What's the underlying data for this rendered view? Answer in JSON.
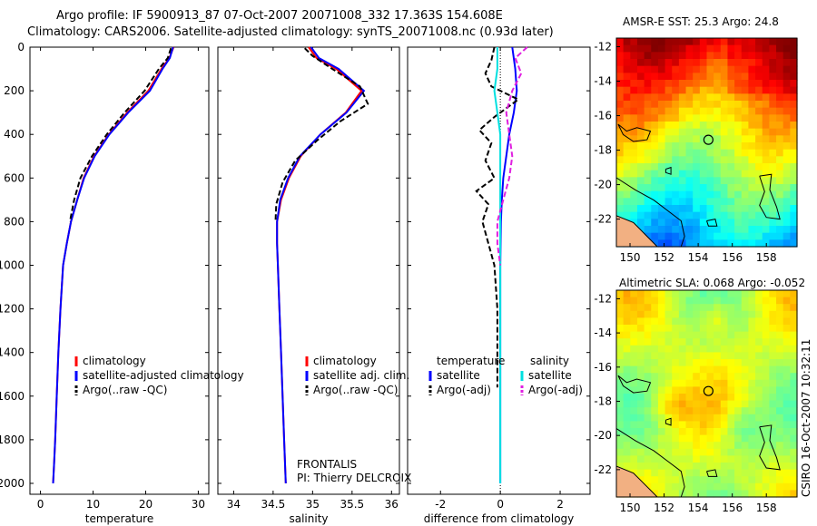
{
  "figure": {
    "title_line1": "Argo profile: IF 5900913_87 07-Oct-2007 20071008_332 17.363S 154.608E",
    "title_line2": "Climatology: CARS2006. Satellite-adjusted climatology: synTS_20071008.nc (0.93d later)",
    "side_stamp": "CSIRO 16-Oct-2007 10:32:11"
  },
  "colors": {
    "climatology": "#ff0000",
    "satellite": "#0000ff",
    "argo": "#000000",
    "salinity_satellite": "#00e0e0",
    "salinity_argo": "#e020e0"
  },
  "chart_data": [
    {
      "type": "line",
      "title": "",
      "xlabel": "temperature",
      "ylabel": "",
      "xlim": [
        -2,
        32
      ],
      "ylim": [
        2050,
        0
      ],
      "xticks": [
        "0",
        "10",
        "20",
        "30"
      ],
      "yticks": [
        "0",
        "200",
        "400",
        "600",
        "800",
        "1000",
        "1200",
        "1400",
        "1600",
        "1800",
        "2000"
      ],
      "legend": [
        "climatology",
        "satellite-adjusted climatology",
        "Argo(..raw -QC)"
      ],
      "series": [
        {
          "name": "climatology",
          "x": [
            25.3,
            24.5,
            23.0,
            20.5,
            16.5,
            13.0,
            10.2,
            8.2,
            7.0,
            5.8,
            5.0,
            4.3,
            3.8,
            3.4,
            3.1,
            2.8,
            2.6,
            2.4
          ],
          "y": [
            0,
            50,
            100,
            200,
            300,
            400,
            500,
            600,
            700,
            800,
            900,
            1000,
            1200,
            1400,
            1600,
            1800,
            1900,
            2000
          ]
        },
        {
          "name": "satellite-adjusted climatology",
          "x": [
            25.2,
            24.6,
            23.2,
            20.8,
            16.7,
            13.1,
            10.3,
            8.3,
            7.0,
            5.8,
            5.0,
            4.3,
            3.8,
            3.4,
            3.1,
            2.8,
            2.6,
            2.4
          ],
          "y": [
            0,
            50,
            100,
            200,
            300,
            400,
            500,
            600,
            700,
            800,
            900,
            1000,
            1200,
            1400,
            1600,
            1800,
            1900,
            2000
          ]
        },
        {
          "name": "Argo(..raw -QC)",
          "x": [
            24.8,
            24.2,
            22.5,
            19.8,
            16.0,
            12.6,
            9.8,
            7.6,
            6.4,
            5.6
          ],
          "y": [
            5,
            50,
            100,
            200,
            300,
            400,
            500,
            600,
            700,
            800
          ]
        }
      ]
    },
    {
      "type": "line",
      "title": "",
      "xlabel": "salinity",
      "ylabel": "",
      "xlim": [
        33.8,
        36.1
      ],
      "ylim": [
        2050,
        0
      ],
      "xticks": [
        "34",
        "34.5",
        "35",
        "35.5",
        "36"
      ],
      "legend": [
        "climatology",
        "satellite adj. clim.",
        "Argo(..raw -QC)"
      ],
      "annotation": [
        "FRONTALIS",
        "PI: Thierry DELCROIX"
      ],
      "series": [
        {
          "name": "climatology",
          "x": [
            34.95,
            35.05,
            35.3,
            35.62,
            35.42,
            35.1,
            34.85,
            34.7,
            34.6,
            34.55,
            34.55,
            34.56,
            34.58,
            34.6,
            34.62,
            34.64,
            34.65,
            34.66
          ],
          "y": [
            0,
            50,
            100,
            200,
            300,
            400,
            500,
            600,
            700,
            800,
            900,
            1000,
            1200,
            1400,
            1600,
            1800,
            1900,
            2000
          ]
        },
        {
          "name": "satellite adj. clim.",
          "x": [
            34.98,
            35.08,
            35.33,
            35.65,
            35.43,
            35.1,
            34.84,
            34.69,
            34.59,
            34.55,
            34.55,
            34.56,
            34.58,
            34.6,
            34.62,
            34.64,
            34.65,
            34.66
          ],
          "y": [
            0,
            50,
            100,
            200,
            300,
            400,
            500,
            600,
            700,
            800,
            900,
            1000,
            1200,
            1400,
            1600,
            1800,
            1900,
            2000
          ]
        },
        {
          "name": "Argo(..raw -QC)",
          "x": [
            34.9,
            35.0,
            35.25,
            35.6,
            35.7,
            35.35,
            35.05,
            34.78,
            34.62,
            34.54,
            34.53
          ],
          "y": [
            5,
            40,
            100,
            180,
            260,
            340,
            430,
            520,
            620,
            720,
            800
          ]
        }
      ]
    },
    {
      "type": "line",
      "title": "",
      "xlabel": "difference from climatology",
      "ylabel": "",
      "xlim": [
        -3.1,
        3.0
      ],
      "ylim": [
        2050,
        0
      ],
      "xticks": [
        "-2",
        "0",
        "2"
      ],
      "legend_left": [
        "temperature",
        "satellite",
        "Argo(-adj)"
      ],
      "legend_right": [
        "salinity",
        "satellite",
        "Argo(-adj)"
      ],
      "series": [
        {
          "name": "temperature satellite",
          "x": [
            0.4,
            0.5,
            0.55,
            0.45,
            0.3,
            0.2,
            0.1,
            0.05,
            0.02,
            0.0,
            0.0,
            0.0,
            0.0
          ],
          "y": [
            0,
            100,
            200,
            300,
            400,
            500,
            600,
            700,
            800,
            1000,
            1400,
            1800,
            2000
          ]
        },
        {
          "name": "temperature Argo(-adj)",
          "x": [
            -0.2,
            -0.3,
            -0.5,
            -0.3,
            0.6,
            -0.2,
            -0.7,
            -0.3,
            -0.5,
            -0.2,
            -0.8,
            -0.4,
            -0.6,
            -0.2,
            -0.1,
            -0.1,
            -0.1,
            -0.1
          ],
          "y": [
            0,
            60,
            120,
            180,
            240,
            320,
            380,
            440,
            520,
            600,
            660,
            720,
            800,
            1000,
            1200,
            1400,
            1500,
            1560
          ]
        },
        {
          "name": "salinity satellite",
          "x": [
            -0.1,
            -0.1,
            -0.2,
            -0.1,
            0.0,
            0.0,
            0.0,
            0.0,
            0.0,
            0.0,
            0.0
          ],
          "y": [
            0,
            100,
            200,
            300,
            400,
            600,
            800,
            1000,
            1400,
            1800,
            2000
          ]
        },
        {
          "name": "salinity Argo(-adj)",
          "x": [
            0.9,
            0.5,
            0.7,
            0.4,
            0.2,
            0.3,
            0.4,
            0.3,
            0.1,
            -0.1,
            -0.1,
            0.0
          ],
          "y": [
            0,
            50,
            120,
            200,
            300,
            400,
            500,
            600,
            700,
            800,
            900,
            1000
          ]
        }
      ]
    },
    {
      "type": "heatmap",
      "title": "AMSR-E SST: 25.3 Argo: 24.8",
      "xticks": [
        "150",
        "152",
        "154",
        "156",
        "158"
      ],
      "yticks": [
        "-12",
        "-14",
        "-16",
        "-18",
        "-20",
        "-22"
      ],
      "xlim": [
        149.2,
        159.8
      ],
      "ylim": [
        -23.6,
        -11.5
      ],
      "marker": {
        "lon": 154.6,
        "lat": -17.4
      }
    },
    {
      "type": "heatmap",
      "title": "Altimetric SLA: 0.068 Argo: -0.052",
      "xticks": [
        "150",
        "152",
        "154",
        "156",
        "158"
      ],
      "yticks": [
        "-12",
        "-14",
        "-16",
        "-18",
        "-20",
        "-22"
      ],
      "xlim": [
        149.2,
        159.8
      ],
      "ylim": [
        -23.6,
        -11.5
      ],
      "marker": {
        "lon": 154.6,
        "lat": -17.4
      }
    }
  ]
}
